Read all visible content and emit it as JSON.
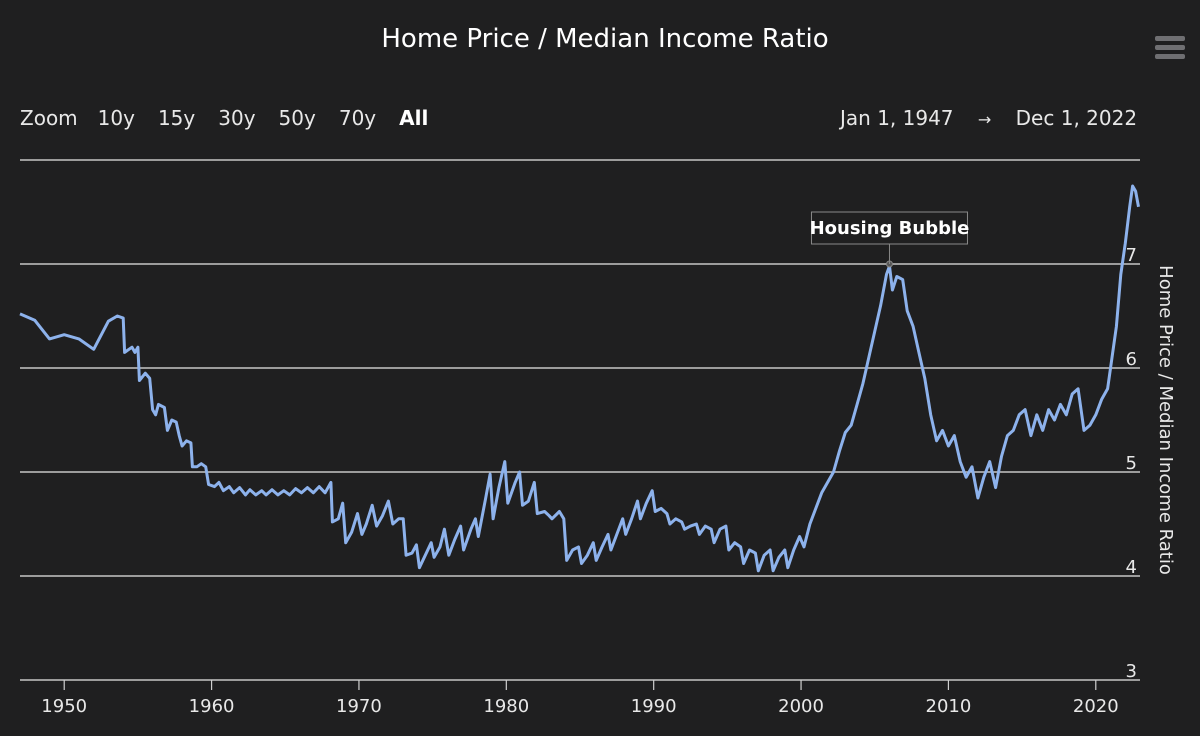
{
  "chart_data": {
    "type": "line",
    "title": "Home Price / Median Income Ratio",
    "ylabel": "Home Price / Median Income Ratio",
    "xlim": [
      1947.0,
      2023.0
    ],
    "ylim": [
      3,
      8
    ],
    "y_ticks": [
      3,
      4,
      5,
      6,
      7
    ],
    "x_ticks": [
      1950,
      1960,
      1970,
      1980,
      1990,
      2000,
      2010,
      2020
    ],
    "grid": "horizontal",
    "line_color": "#8db2ec",
    "series": [
      {
        "values": [
          [
            1947.0,
            6.52
          ],
          [
            1948.0,
            6.46
          ],
          [
            1949.0,
            6.28
          ],
          [
            1950.0,
            6.32
          ],
          [
            1951.0,
            6.28
          ],
          [
            1952.0,
            6.18
          ],
          [
            1953.0,
            6.45
          ],
          [
            1953.6,
            6.5
          ],
          [
            1954.0,
            6.48
          ],
          [
            1954.1,
            6.15
          ],
          [
            1954.6,
            6.2
          ],
          [
            1954.8,
            6.15
          ],
          [
            1955.0,
            6.2
          ],
          [
            1955.1,
            5.88
          ],
          [
            1955.5,
            5.95
          ],
          [
            1955.8,
            5.9
          ],
          [
            1956.0,
            5.6
          ],
          [
            1956.2,
            5.55
          ],
          [
            1956.4,
            5.65
          ],
          [
            1956.8,
            5.62
          ],
          [
            1957.0,
            5.4
          ],
          [
            1957.3,
            5.5
          ],
          [
            1957.6,
            5.48
          ],
          [
            1957.8,
            5.35
          ],
          [
            1958.0,
            5.25
          ],
          [
            1958.3,
            5.3
          ],
          [
            1958.6,
            5.28
          ],
          [
            1958.7,
            5.05
          ],
          [
            1959.0,
            5.05
          ],
          [
            1959.3,
            5.08
          ],
          [
            1959.6,
            5.05
          ],
          [
            1959.8,
            4.88
          ],
          [
            1960.2,
            4.86
          ],
          [
            1960.5,
            4.9
          ],
          [
            1960.8,
            4.82
          ],
          [
            1961.2,
            4.86
          ],
          [
            1961.5,
            4.8
          ],
          [
            1961.9,
            4.85
          ],
          [
            1962.3,
            4.78
          ],
          [
            1962.6,
            4.83
          ],
          [
            1963.0,
            4.78
          ],
          [
            1963.4,
            4.82
          ],
          [
            1963.7,
            4.78
          ],
          [
            1964.1,
            4.83
          ],
          [
            1964.5,
            4.78
          ],
          [
            1964.9,
            4.82
          ],
          [
            1965.3,
            4.78
          ],
          [
            1965.7,
            4.84
          ],
          [
            1966.1,
            4.8
          ],
          [
            1966.5,
            4.85
          ],
          [
            1966.9,
            4.8
          ],
          [
            1967.3,
            4.86
          ],
          [
            1967.7,
            4.8
          ],
          [
            1968.1,
            4.9
          ],
          [
            1968.2,
            4.52
          ],
          [
            1968.6,
            4.55
          ],
          [
            1968.9,
            4.7
          ],
          [
            1969.1,
            4.32
          ],
          [
            1969.5,
            4.42
          ],
          [
            1969.9,
            4.6
          ],
          [
            1970.2,
            4.4
          ],
          [
            1970.5,
            4.5
          ],
          [
            1970.9,
            4.68
          ],
          [
            1971.2,
            4.48
          ],
          [
            1971.6,
            4.58
          ],
          [
            1972.0,
            4.72
          ],
          [
            1972.3,
            4.5
          ],
          [
            1972.7,
            4.55
          ],
          [
            1973.0,
            4.55
          ],
          [
            1973.2,
            4.2
          ],
          [
            1973.6,
            4.22
          ],
          [
            1973.9,
            4.3
          ],
          [
            1974.1,
            4.08
          ],
          [
            1974.5,
            4.2
          ],
          [
            1974.9,
            4.32
          ],
          [
            1975.1,
            4.18
          ],
          [
            1975.5,
            4.28
          ],
          [
            1975.8,
            4.45
          ],
          [
            1976.1,
            4.2
          ],
          [
            1976.5,
            4.35
          ],
          [
            1976.9,
            4.48
          ],
          [
            1977.1,
            4.25
          ],
          [
            1977.6,
            4.45
          ],
          [
            1977.9,
            4.55
          ],
          [
            1978.1,
            4.38
          ],
          [
            1978.6,
            4.75
          ],
          [
            1978.9,
            4.98
          ],
          [
            1979.1,
            4.55
          ],
          [
            1979.5,
            4.85
          ],
          [
            1979.9,
            5.1
          ],
          [
            1980.1,
            4.7
          ],
          [
            1980.6,
            4.9
          ],
          [
            1980.9,
            5.0
          ],
          [
            1981.1,
            4.68
          ],
          [
            1981.5,
            4.72
          ],
          [
            1981.9,
            4.9
          ],
          [
            1982.1,
            4.6
          ],
          [
            1982.6,
            4.62
          ],
          [
            1982.9,
            4.58
          ],
          [
            1983.1,
            4.55
          ],
          [
            1983.6,
            4.62
          ],
          [
            1983.9,
            4.55
          ],
          [
            1984.1,
            4.15
          ],
          [
            1984.5,
            4.25
          ],
          [
            1984.9,
            4.28
          ],
          [
            1985.1,
            4.12
          ],
          [
            1985.5,
            4.2
          ],
          [
            1985.9,
            4.32
          ],
          [
            1986.1,
            4.15
          ],
          [
            1986.5,
            4.28
          ],
          [
            1986.9,
            4.4
          ],
          [
            1987.1,
            4.25
          ],
          [
            1987.5,
            4.4
          ],
          [
            1987.9,
            4.55
          ],
          [
            1988.1,
            4.4
          ],
          [
            1988.5,
            4.55
          ],
          [
            1988.9,
            4.72
          ],
          [
            1989.1,
            4.55
          ],
          [
            1989.5,
            4.7
          ],
          [
            1989.9,
            4.82
          ],
          [
            1990.1,
            4.62
          ],
          [
            1990.5,
            4.65
          ],
          [
            1990.9,
            4.6
          ],
          [
            1991.1,
            4.5
          ],
          [
            1991.5,
            4.55
          ],
          [
            1991.9,
            4.52
          ],
          [
            1992.1,
            4.45
          ],
          [
            1992.5,
            4.48
          ],
          [
            1992.9,
            4.5
          ],
          [
            1993.1,
            4.4
          ],
          [
            1993.5,
            4.48
          ],
          [
            1993.9,
            4.45
          ],
          [
            1994.1,
            4.32
          ],
          [
            1994.5,
            4.45
          ],
          [
            1994.9,
            4.48
          ],
          [
            1995.1,
            4.25
          ],
          [
            1995.5,
            4.32
          ],
          [
            1995.9,
            4.28
          ],
          [
            1996.1,
            4.12
          ],
          [
            1996.5,
            4.25
          ],
          [
            1996.9,
            4.22
          ],
          [
            1997.1,
            4.05
          ],
          [
            1997.5,
            4.2
          ],
          [
            1997.9,
            4.25
          ],
          [
            1998.1,
            4.05
          ],
          [
            1998.5,
            4.18
          ],
          [
            1998.9,
            4.25
          ],
          [
            1999.1,
            4.08
          ],
          [
            1999.5,
            4.25
          ],
          [
            1999.9,
            4.38
          ],
          [
            2000.2,
            4.28
          ],
          [
            2000.6,
            4.5
          ],
          [
            2001.0,
            4.65
          ],
          [
            2001.4,
            4.8
          ],
          [
            2001.8,
            4.9
          ],
          [
            2002.2,
            5.0
          ],
          [
            2002.6,
            5.2
          ],
          [
            2003.0,
            5.38
          ],
          [
            2003.4,
            5.45
          ],
          [
            2003.8,
            5.65
          ],
          [
            2004.2,
            5.85
          ],
          [
            2004.6,
            6.1
          ],
          [
            2005.0,
            6.35
          ],
          [
            2005.4,
            6.6
          ],
          [
            2005.8,
            6.9
          ],
          [
            2006.0,
            6.98
          ],
          [
            2006.2,
            6.75
          ],
          [
            2006.5,
            6.88
          ],
          [
            2006.9,
            6.85
          ],
          [
            2007.2,
            6.55
          ],
          [
            2007.6,
            6.4
          ],
          [
            2008.0,
            6.15
          ],
          [
            2008.4,
            5.9
          ],
          [
            2008.8,
            5.55
          ],
          [
            2009.2,
            5.3
          ],
          [
            2009.6,
            5.4
          ],
          [
            2010.0,
            5.25
          ],
          [
            2010.4,
            5.35
          ],
          [
            2010.8,
            5.1
          ],
          [
            2011.2,
            4.95
          ],
          [
            2011.6,
            5.05
          ],
          [
            2012.0,
            4.75
          ],
          [
            2012.4,
            4.95
          ],
          [
            2012.8,
            5.1
          ],
          [
            2013.2,
            4.85
          ],
          [
            2013.6,
            5.15
          ],
          [
            2014.0,
            5.35
          ],
          [
            2014.4,
            5.4
          ],
          [
            2014.8,
            5.55
          ],
          [
            2015.2,
            5.6
          ],
          [
            2015.6,
            5.35
          ],
          [
            2016.0,
            5.55
          ],
          [
            2016.4,
            5.4
          ],
          [
            2016.8,
            5.6
          ],
          [
            2017.2,
            5.5
          ],
          [
            2017.6,
            5.65
          ],
          [
            2018.0,
            5.55
          ],
          [
            2018.4,
            5.75
          ],
          [
            2018.8,
            5.8
          ],
          [
            2019.2,
            5.4
          ],
          [
            2019.6,
            5.45
          ],
          [
            2020.0,
            5.55
          ],
          [
            2020.4,
            5.7
          ],
          [
            2020.8,
            5.8
          ],
          [
            2021.1,
            6.1
          ],
          [
            2021.4,
            6.4
          ],
          [
            2021.7,
            6.9
          ],
          [
            2022.0,
            7.2
          ],
          [
            2022.3,
            7.55
          ],
          [
            2022.5,
            7.75
          ],
          [
            2022.7,
            7.7
          ],
          [
            2022.9,
            7.55
          ]
        ]
      }
    ],
    "annotations": [
      {
        "text": "Housing Bubble",
        "x": 2006.0,
        "y": 7.0
      }
    ]
  },
  "toolbar": {
    "zoom_label": "Zoom",
    "zoom_buttons": [
      "10y",
      "15y",
      "30y",
      "50y",
      "70y",
      "All"
    ],
    "zoom_active": "All",
    "range_from": "Jan 1, 1947",
    "range_arrow": "→",
    "range_to": "Dec 1, 2022"
  },
  "menu_icon": "hamburger-menu-icon"
}
